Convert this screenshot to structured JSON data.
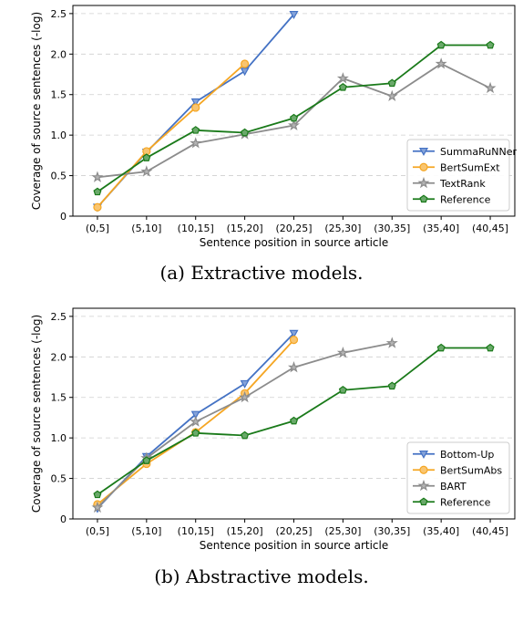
{
  "chart_data": [
    {
      "type": "line",
      "caption": "(a) Extractive models.",
      "xlabel": "Sentence position in source article",
      "ylabel": "Coverage of source sentences (-log)",
      "categories": [
        "(0,5]",
        "(5,10]",
        "(10,15]",
        "(15,20]",
        "(20,25]",
        "(25,30]",
        "(30,35]",
        "(35,40]",
        "(40,45]"
      ],
      "ylim": [
        0,
        2.6
      ],
      "yticks": [
        "0",
        "0.5",
        "1.0",
        "1.5",
        "2.0",
        "2.5"
      ],
      "grid": "horizontal dashed",
      "legend_position": "lower-right",
      "series": [
        {
          "name": "SummaRuNNer",
          "color": "#4472c4",
          "marker": "triangle-down",
          "values": [
            0.11,
            0.79,
            1.41,
            1.79,
            2.49,
            null,
            null,
            null,
            null
          ]
        },
        {
          "name": "BertSumExt",
          "color": "#f5a623",
          "marker": "circle",
          "values": [
            0.11,
            0.8,
            1.34,
            1.88,
            null,
            null,
            null,
            null,
            null
          ]
        },
        {
          "name": "TextRank",
          "color": "#8c8c8c",
          "marker": "star",
          "values": [
            0.48,
            0.55,
            0.9,
            1.01,
            1.12,
            1.7,
            1.48,
            1.88,
            1.58
          ]
        },
        {
          "name": "Reference",
          "color": "#1a7a1a",
          "marker": "pentagon",
          "values": [
            0.3,
            0.72,
            1.06,
            1.03,
            1.21,
            1.59,
            1.64,
            2.11,
            2.11
          ]
        }
      ]
    },
    {
      "type": "line",
      "caption": "(b) Abstractive models.",
      "xlabel": "Sentence position in source article",
      "ylabel": "Coverage of source sentences (-log)",
      "categories": [
        "(0,5]",
        "(5,10]",
        "(10,15]",
        "(15,20]",
        "(20,25]",
        "(25,30]",
        "(30,35]",
        "(35,40]",
        "(40,45]"
      ],
      "ylim": [
        0,
        2.6
      ],
      "yticks": [
        "0",
        "0.5",
        "1.0",
        "1.5",
        "2.0",
        "2.5"
      ],
      "grid": "horizontal dashed",
      "legend_position": "lower-right",
      "series": [
        {
          "name": "Bottom-Up",
          "color": "#4472c4",
          "marker": "triangle-down",
          "values": [
            0.13,
            0.77,
            1.29,
            1.67,
            2.29,
            null,
            null,
            null,
            null
          ]
        },
        {
          "name": "BertSumAbs",
          "color": "#f5a623",
          "marker": "circle",
          "values": [
            0.18,
            0.68,
            1.07,
            1.55,
            2.21,
            null,
            null,
            null,
            null
          ]
        },
        {
          "name": "BART",
          "color": "#8c8c8c",
          "marker": "star",
          "values": [
            0.14,
            0.75,
            1.2,
            1.5,
            1.87,
            2.05,
            2.17,
            null,
            null
          ]
        },
        {
          "name": "Reference",
          "color": "#1a7a1a",
          "marker": "pentagon",
          "values": [
            0.3,
            0.72,
            1.06,
            1.03,
            1.21,
            1.59,
            1.64,
            2.11,
            2.11
          ]
        }
      ]
    }
  ]
}
